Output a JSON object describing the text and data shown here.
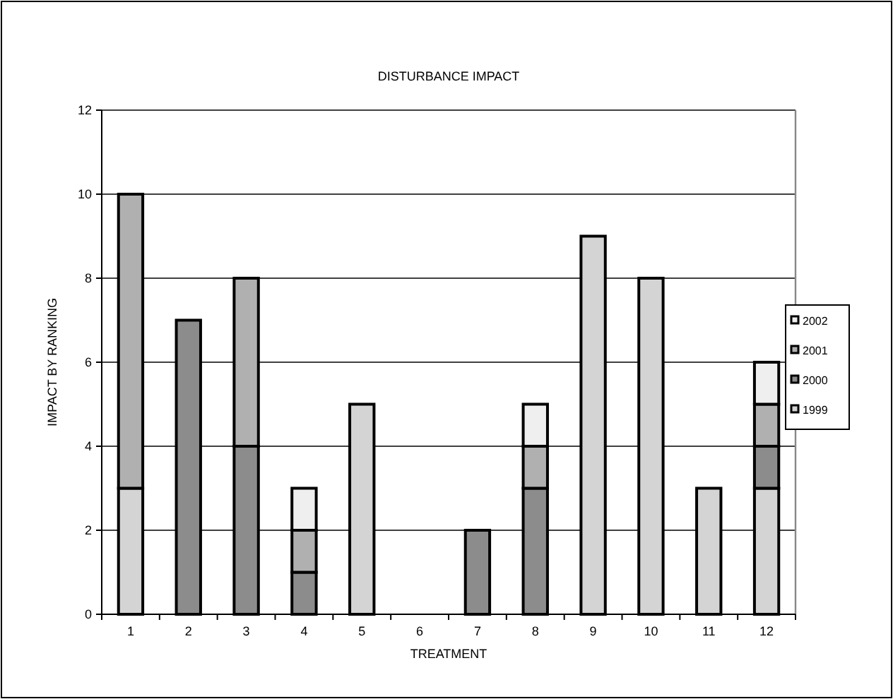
{
  "chart_data": {
    "type": "bar",
    "title": "DISTURBANCE IMPACT",
    "xlabel": "TREATMENT",
    "ylabel": "IMPACT BY RANKING",
    "categories": [
      "1",
      "2",
      "3",
      "4",
      "5",
      "6",
      "7",
      "8",
      "9",
      "10",
      "11",
      "12"
    ],
    "stacked": true,
    "series": [
      {
        "name": "1999",
        "color": "#d4d4d4",
        "values": [
          3,
          null,
          null,
          null,
          5,
          null,
          null,
          null,
          9,
          8,
          3,
          3
        ]
      },
      {
        "name": "2000",
        "color": "#8c8c8c",
        "values": [
          null,
          7,
          4,
          1,
          null,
          null,
          2,
          3,
          null,
          null,
          null,
          1
        ]
      },
      {
        "name": "2001",
        "color": "#b0b0b0",
        "values": [
          7,
          null,
          4,
          1,
          null,
          null,
          null,
          1,
          null,
          null,
          null,
          1
        ]
      },
      {
        "name": "2002",
        "color": "#efefef",
        "values": [
          null,
          null,
          null,
          1,
          null,
          null,
          null,
          1,
          null,
          null,
          null,
          1
        ]
      }
    ],
    "ylim": [
      0,
      12
    ],
    "yticks": [
      0,
      2,
      4,
      6,
      8,
      10,
      12
    ],
    "grid": "y",
    "legend": "right"
  }
}
